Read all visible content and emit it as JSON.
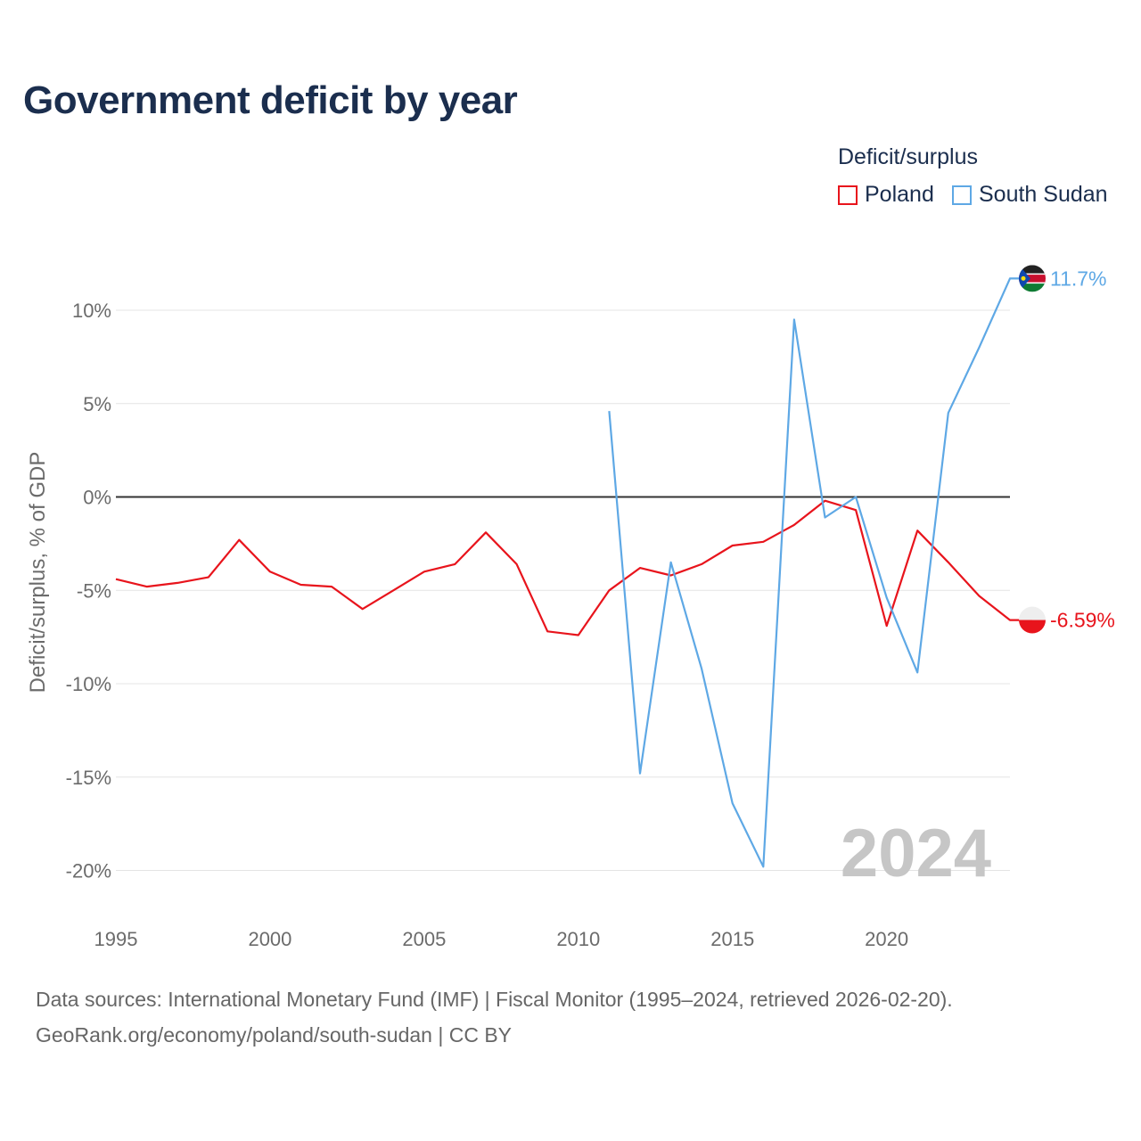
{
  "title": "Government deficit by year",
  "legend": {
    "title": "Deficit/surplus",
    "items": [
      {
        "label": "Poland",
        "color": "#e8141c"
      },
      {
        "label": "South Sudan",
        "color": "#5ea8e5"
      }
    ]
  },
  "footer": {
    "source": "Data sources: International Monetary Fund (IMF) | Fiscal Monitor (1995–2024, retrieved 2026-02-20).",
    "credit": "GeoRank.org/economy/poland/south-sudan | CC BY"
  },
  "chart_data": {
    "type": "line",
    "title": "Government deficit by year",
    "xlabel": "",
    "ylabel": "Deficit/surplus, % of GDP",
    "xlim": [
      1995,
      2024
    ],
    "ylim": [
      -20,
      11.7
    ],
    "grid": true,
    "legend_position": "top-right",
    "watermark": "2024",
    "x_ticks": [
      1995,
      2000,
      2005,
      2010,
      2015,
      2020
    ],
    "x_tick_labels": [
      "1995",
      "2000",
      "2005",
      "2010",
      "2015",
      "2020"
    ],
    "y_ticks": [
      10,
      5,
      0,
      -5,
      -10,
      -15,
      -20
    ],
    "y_tick_labels": [
      "10%",
      "5%",
      "0%",
      "-5%",
      "-10%",
      "-15%",
      "-20%"
    ],
    "series": [
      {
        "name": "Poland",
        "color": "#e8141c",
        "end_label": "-6.59%",
        "x": [
          1995,
          1996,
          1997,
          1998,
          1999,
          2000,
          2001,
          2002,
          2003,
          2004,
          2005,
          2006,
          2007,
          2008,
          2009,
          2010,
          2011,
          2012,
          2013,
          2014,
          2015,
          2016,
          2017,
          2018,
          2019,
          2020,
          2021,
          2022,
          2023,
          2024
        ],
        "values": [
          -4.4,
          -4.8,
          -4.6,
          -4.3,
          -2.3,
          -4.0,
          -4.7,
          -4.8,
          -6.0,
          -5.0,
          -4.0,
          -3.6,
          -1.9,
          -3.6,
          -7.2,
          -7.4,
          -5.0,
          -3.8,
          -4.2,
          -3.6,
          -2.6,
          -2.4,
          -1.5,
          -0.2,
          -0.7,
          -6.9,
          -1.8,
          -3.5,
          -5.3,
          -6.59
        ]
      },
      {
        "name": "South Sudan",
        "color": "#5ea8e5",
        "end_label": "11.7%",
        "x": [
          2011,
          2012,
          2013,
          2014,
          2015,
          2016,
          2017,
          2018,
          2019,
          2020,
          2021,
          2022,
          2023,
          2024
        ],
        "values": [
          4.6,
          -14.8,
          -3.5,
          -9.2,
          -16.4,
          -19.8,
          9.5,
          -1.1,
          0.0,
          -5.4,
          -9.4,
          4.5,
          8.0,
          11.7
        ]
      }
    ]
  }
}
